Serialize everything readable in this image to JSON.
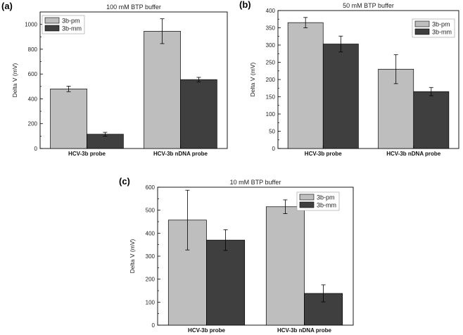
{
  "figure": {
    "background": "#ffffff"
  },
  "chart_data": [
    {
      "id": "a",
      "panel_label": "(a)",
      "type": "bar",
      "title": "100 mM BTP buffer",
      "xlabel": "",
      "ylabel": "Delta V (mV)",
      "ylim": [
        0,
        1100
      ],
      "yticks": [
        0,
        200,
        400,
        600,
        800,
        1000
      ],
      "categories": [
        "HCV-3b probe",
        "HCV-3b nDNA probe"
      ],
      "series": [
        {
          "name": "3b-pm",
          "color": "#bebebe",
          "values": [
            480,
            945
          ],
          "errors": [
            22,
            100
          ]
        },
        {
          "name": "3b-mm",
          "color": "#3f3f3f",
          "values": [
            115,
            555
          ],
          "errors": [
            15,
            18
          ]
        }
      ],
      "legend_position": "top-left"
    },
    {
      "id": "b",
      "panel_label": "(b)",
      "type": "bar",
      "title": "50 mM BTP buffer",
      "xlabel": "",
      "ylabel": "Delta V (mV)",
      "ylim": [
        0,
        400
      ],
      "yticks": [
        0,
        50,
        100,
        150,
        200,
        250,
        300,
        350,
        400
      ],
      "categories": [
        "HCV-3b probe",
        "HCV-3b nDNA probe"
      ],
      "series": [
        {
          "name": "3b-pm",
          "color": "#bebebe",
          "values": [
            365,
            230
          ],
          "errors": [
            15,
            42
          ]
        },
        {
          "name": "3b-mm",
          "color": "#3f3f3f",
          "values": [
            303,
            165
          ],
          "errors": [
            23,
            12
          ]
        }
      ],
      "legend_position": "top-right"
    },
    {
      "id": "c",
      "panel_label": "(c)",
      "type": "bar",
      "title": "10 mM BTP buffer",
      "xlabel": "",
      "ylabel": "Delta V (mV)",
      "ylim": [
        0,
        600
      ],
      "yticks": [
        0,
        100,
        200,
        300,
        400,
        500,
        600
      ],
      "categories": [
        "HCV-3b probe",
        "HCV-3b nDNA probe"
      ],
      "series": [
        {
          "name": "3b-pm",
          "color": "#bebebe",
          "values": [
            457,
            515
          ],
          "errors": [
            130,
            30
          ]
        },
        {
          "name": "3b-mm",
          "color": "#3f3f3f",
          "values": [
            370,
            138
          ],
          "errors": [
            45,
            37
          ]
        }
      ],
      "legend_position": "top-right"
    }
  ]
}
